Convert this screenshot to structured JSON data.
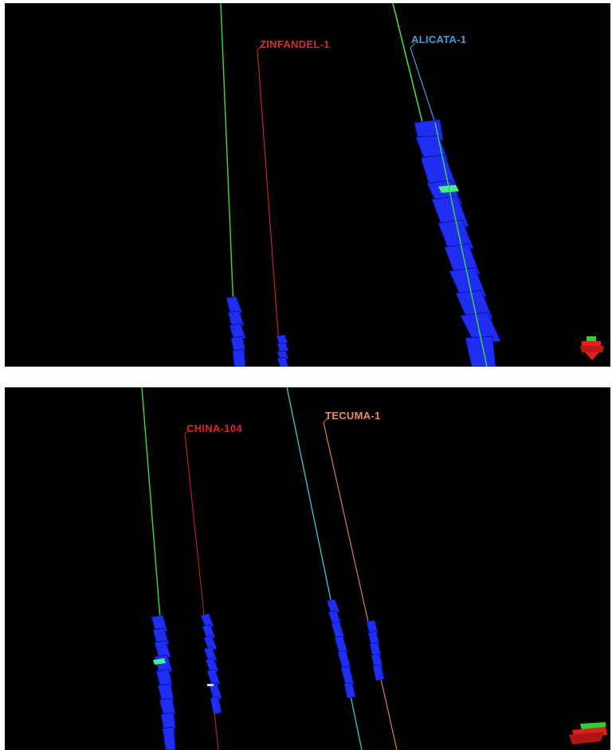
{
  "panels": [
    {
      "wells": [
        {
          "name": "ZINFANDEL-1",
          "color": "#d0302a"
        },
        {
          "name": "ALICATA-1",
          "color": "#3fa0e0"
        }
      ]
    },
    {
      "wells": [
        {
          "name": "CHINA-104",
          "color": "#e02424"
        },
        {
          "name": "TECUMA-1",
          "color": "#f08a5a"
        }
      ]
    }
  ],
  "colors": {
    "background": "#000000",
    "fault_blocks": "#2233ee",
    "marker": "#44ee88",
    "trajectory_green": "#3cdc3c",
    "trajectory_cyan": "#35c8d8"
  },
  "icons": [
    "orientation-gizmo-icon",
    "orientation-gizmo-icon"
  ]
}
